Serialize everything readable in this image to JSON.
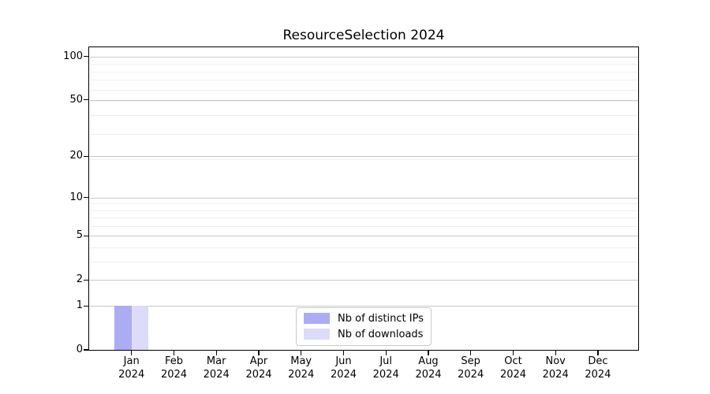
{
  "chart_data": {
    "type": "bar",
    "title": "ResourceSelection 2024",
    "categories": [
      {
        "month": "Jan",
        "year": "2024"
      },
      {
        "month": "Feb",
        "year": "2024"
      },
      {
        "month": "Mar",
        "year": "2024"
      },
      {
        "month": "Apr",
        "year": "2024"
      },
      {
        "month": "May",
        "year": "2024"
      },
      {
        "month": "Jun",
        "year": "2024"
      },
      {
        "month": "Jul",
        "year": "2024"
      },
      {
        "month": "Aug",
        "year": "2024"
      },
      {
        "month": "Sep",
        "year": "2024"
      },
      {
        "month": "Oct",
        "year": "2024"
      },
      {
        "month": "Nov",
        "year": "2024"
      },
      {
        "month": "Dec",
        "year": "2024"
      }
    ],
    "series": [
      {
        "name": "Nb of distinct IPs",
        "color": "#abacf1",
        "values": [
          1,
          0,
          0,
          0,
          0,
          0,
          0,
          0,
          0,
          0,
          0,
          0
        ]
      },
      {
        "name": "Nb of downloads",
        "color": "#dcdcf8",
        "values": [
          1,
          0,
          0,
          0,
          0,
          0,
          0,
          0,
          0,
          0,
          0,
          0
        ]
      }
    ],
    "xlabel": "",
    "ylabel": "",
    "yscale": "log10(1+y)",
    "ylim": [
      0,
      115
    ],
    "xlim": [
      -1,
      11.95
    ],
    "yticks": [
      0,
      1,
      2,
      5,
      10,
      20,
      50,
      100
    ],
    "minor_yticks": [
      3,
      4,
      6,
      7,
      8,
      9,
      19,
      29,
      39,
      49,
      59,
      69,
      79,
      89
    ],
    "grid": "on",
    "legend_position": "lower center",
    "bar_width_fraction": 0.4,
    "colors": {
      "axis_frame": "#000000",
      "major_grid": "#c8c8c8",
      "minor_grid": "#efefef",
      "text": "#000000",
      "legend_border": "#c9c9c9",
      "background": "#ffffff"
    }
  }
}
